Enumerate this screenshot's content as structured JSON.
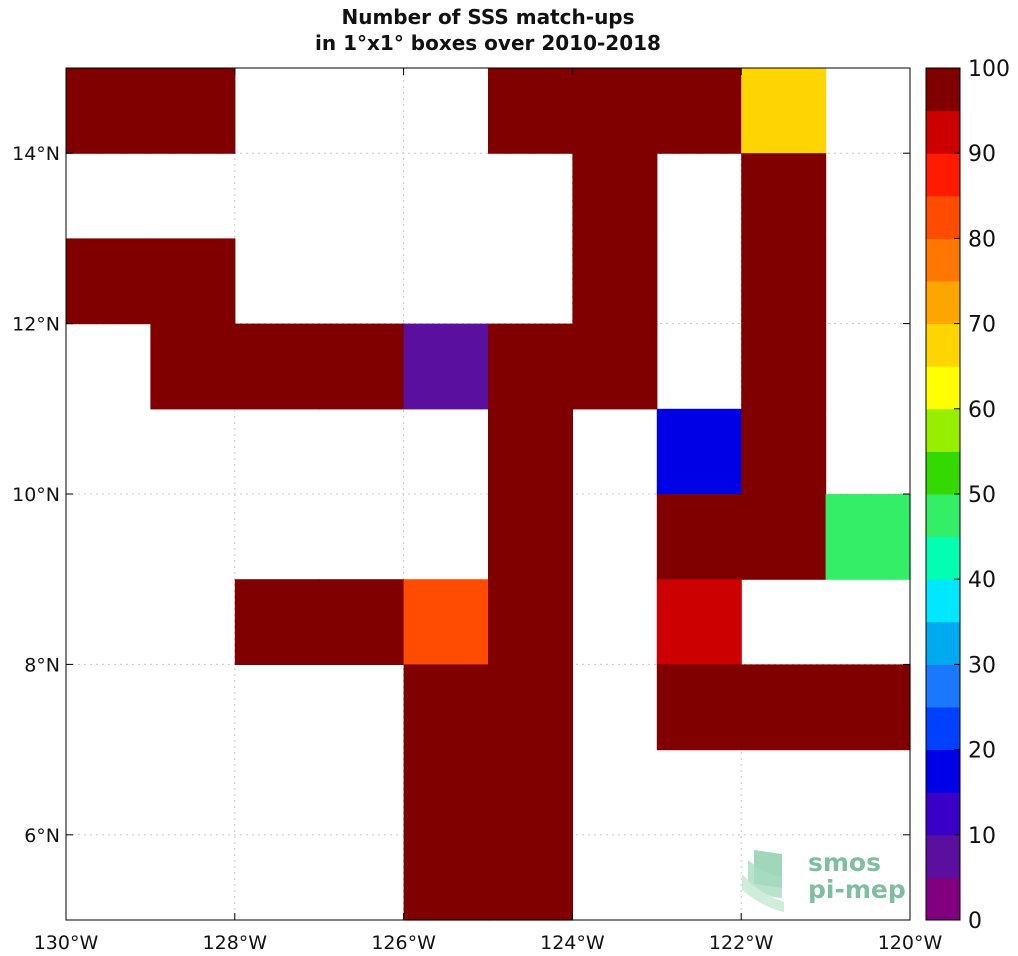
{
  "title_line1": "Number of SSS match-ups",
  "title_line2": "in 1°x1° boxes over 2010-2018",
  "logo": {
    "line1": "smos",
    "line2": "pi-mep"
  },
  "chart_data": {
    "type": "heatmap",
    "title": "Number of SSS match-ups in 1°x1° boxes over 2010-2018",
    "x_ticks": [
      {
        "value": -130,
        "label": "130°W"
      },
      {
        "value": -128,
        "label": "128°W"
      },
      {
        "value": -126,
        "label": "126°W"
      },
      {
        "value": -124,
        "label": "124°W"
      },
      {
        "value": -122,
        "label": "122°W"
      },
      {
        "value": -120,
        "label": "120°W"
      }
    ],
    "y_ticks": [
      {
        "value": 6,
        "label": "6°N"
      },
      {
        "value": 8,
        "label": "8°N"
      },
      {
        "value": 10,
        "label": "10°N"
      },
      {
        "value": 12,
        "label": "12°N"
      },
      {
        "value": 14,
        "label": "14°N"
      }
    ],
    "xlim": [
      -130,
      -120
    ],
    "ylim": [
      5,
      15
    ],
    "grid": true,
    "cell_size_deg": 1,
    "cells_note": "lon/lat = lower-left corner of 1°x1° box",
    "cells": [
      {
        "lon": -130,
        "lat": 14,
        "value": 100
      },
      {
        "lon": -129,
        "lat": 14,
        "value": 100
      },
      {
        "lon": -125,
        "lat": 14,
        "value": 100
      },
      {
        "lon": -124,
        "lat": 14,
        "value": 100
      },
      {
        "lon": -123,
        "lat": 14,
        "value": 100
      },
      {
        "lon": -122,
        "lat": 14,
        "value": 70
      },
      {
        "lon": -124,
        "lat": 13,
        "value": 100
      },
      {
        "lon": -122,
        "lat": 13,
        "value": 100
      },
      {
        "lon": -130,
        "lat": 12,
        "value": 100
      },
      {
        "lon": -129,
        "lat": 12,
        "value": 100
      },
      {
        "lon": -124,
        "lat": 12,
        "value": 100
      },
      {
        "lon": -122,
        "lat": 12,
        "value": 100
      },
      {
        "lon": -129,
        "lat": 11,
        "value": 100
      },
      {
        "lon": -128,
        "lat": 11,
        "value": 100
      },
      {
        "lon": -127,
        "lat": 11,
        "value": 100
      },
      {
        "lon": -126,
        "lat": 11,
        "value": 10
      },
      {
        "lon": -125,
        "lat": 11,
        "value": 100
      },
      {
        "lon": -124,
        "lat": 11,
        "value": 100
      },
      {
        "lon": -122,
        "lat": 11,
        "value": 100
      },
      {
        "lon": -125,
        "lat": 10,
        "value": 100
      },
      {
        "lon": -123,
        "lat": 10,
        "value": 20
      },
      {
        "lon": -122,
        "lat": 10,
        "value": 100
      },
      {
        "lon": -125,
        "lat": 9,
        "value": 100
      },
      {
        "lon": -123,
        "lat": 9,
        "value": 100
      },
      {
        "lon": -122,
        "lat": 9,
        "value": 100
      },
      {
        "lon": -121,
        "lat": 9,
        "value": 50
      },
      {
        "lon": -128,
        "lat": 8,
        "value": 100
      },
      {
        "lon": -127,
        "lat": 8,
        "value": 100
      },
      {
        "lon": -126,
        "lat": 8,
        "value": 85
      },
      {
        "lon": -125,
        "lat": 8,
        "value": 100
      },
      {
        "lon": -123,
        "lat": 8,
        "value": 95
      },
      {
        "lon": -126,
        "lat": 7,
        "value": 100
      },
      {
        "lon": -125,
        "lat": 7,
        "value": 100
      },
      {
        "lon": -123,
        "lat": 7,
        "value": 100
      },
      {
        "lon": -122,
        "lat": 7,
        "value": 100
      },
      {
        "lon": -121,
        "lat": 7,
        "value": 100
      },
      {
        "lon": -126,
        "lat": 6,
        "value": 100
      },
      {
        "lon": -125,
        "lat": 6,
        "value": 100
      },
      {
        "lon": -126,
        "lat": 5,
        "value": 100
      },
      {
        "lon": -125,
        "lat": 5,
        "value": 100
      }
    ],
    "colorbar": {
      "range": [
        0,
        100
      ],
      "ticks": [
        0,
        10,
        20,
        30,
        40,
        50,
        60,
        70,
        80,
        90,
        100
      ],
      "colors": [
        "#800080",
        "#5a0f9e",
        "#3a00c8",
        "#0000e6",
        "#0040ff",
        "#1a78ff",
        "#00aaee",
        "#00e8ff",
        "#00ffb0",
        "#33ee66",
        "#33d900",
        "#99ee00",
        "#ffff00",
        "#ffd500",
        "#ffa500",
        "#ff7700",
        "#ff4c00",
        "#ff1a00",
        "#cc0000",
        "#800000"
      ]
    }
  }
}
